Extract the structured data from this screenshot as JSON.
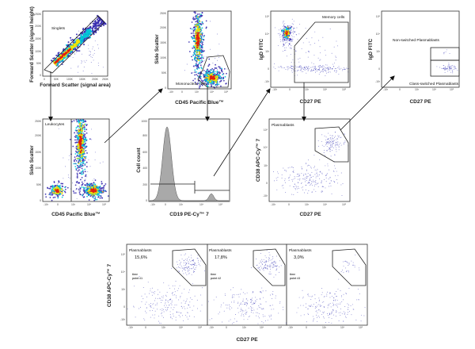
{
  "colors": {
    "density_low": "#3a2fb0",
    "density_mid": "#00c8d8",
    "density_high": "#f4e400",
    "density_peak": "#e02010",
    "histogram_fill": "#a9a9a9",
    "scatter_dot": "#4040b8"
  },
  "panels": {
    "singlets": {
      "x_label": "Forward Scatter (signal area)",
      "y_label": "Forward Scatter (signal height)",
      "gate_label": "Singlets",
      "x_ticks": [
        "0",
        "50K",
        "100K",
        "150K",
        "200K",
        "250K"
      ],
      "y_ticks": [
        "0",
        "50K",
        "100K",
        "150K",
        "200K",
        "250K"
      ]
    },
    "mononuclear": {
      "x_label": "CD45 Pacific Blue™",
      "y_label": "Side Scatter",
      "gate_label": "Mononuclear cells",
      "x_ticks": [
        "-10³",
        "0",
        "10³",
        "10⁴",
        "10⁵"
      ],
      "y_ticks": [
        "0",
        "50K",
        "100K",
        "150K",
        "200K",
        "250K"
      ]
    },
    "memory": {
      "x_label": "CD27 PE",
      "y_label": "IgD FITC",
      "gate_label": "Memory cells",
      "x_ticks": [
        "-10³",
        "0",
        "10³",
        "10⁴",
        "10⁵"
      ],
      "y_ticks": [
        "-10³",
        "0",
        "10³",
        "10⁴",
        "10⁵"
      ]
    },
    "switched": {
      "x_label": "CD27 PE",
      "y_label": "IgD FITC",
      "gate_label_top": "Non-switched Plasmablasts",
      "gate_label_bottom": "Class-switched Plasmablasts",
      "x_ticks": [
        "-10³",
        "0",
        "10³",
        "10⁴",
        "10⁵"
      ],
      "y_ticks": [
        "-10³",
        "0",
        "10³",
        "10⁴",
        "10⁵"
      ]
    },
    "leukocytes": {
      "x_label": "CD45 Pacific Blue™",
      "y_label": "Side Scatter",
      "gate_label": "Leukocytes",
      "x_ticks": [
        "-10³",
        "0",
        "10³",
        "10⁴",
        "10⁵"
      ],
      "y_ticks": [
        "0",
        "50K",
        "100K",
        "150K",
        "200K",
        "250K"
      ]
    },
    "cd19": {
      "x_label": "CD19 PE-Cy™ 7",
      "y_label": "Cell count",
      "x_ticks": [
        "-10³",
        "0",
        "10³",
        "10⁴",
        "10⁵"
      ],
      "y_ticks": [
        "0",
        "200",
        "400",
        "600",
        "800",
        "1000"
      ]
    },
    "plasmablasts": {
      "x_label": "CD27 PE",
      "y_label": "CD38 APC-Cy™ 7",
      "gate_label": "Plasmablasts",
      "x_ticks": [
        "-10³",
        "0",
        "10³",
        "10⁴",
        "10⁵"
      ],
      "y_ticks": [
        "-10³",
        "0",
        "10³",
        "10⁴",
        "10⁵"
      ]
    }
  },
  "timepoints": {
    "x_label": "CD27 PE",
    "y_label": "CD38 APC-Cy™ 7",
    "x_ticks": [
      "-10³",
      "0",
      "10³",
      "10⁴",
      "10⁵"
    ],
    "y_ticks": [
      "-10³",
      "0",
      "10³",
      "10⁴",
      "10⁵"
    ],
    "panels": [
      {
        "gate_label": "Plasmablasts",
        "percent": "15,6%",
        "tp_line1": "time",
        "tp_line2": "point #1"
      },
      {
        "gate_label": "Plasmablasts",
        "percent": "17,8%",
        "tp_line1": "time",
        "tp_line2": "point #2"
      },
      {
        "gate_label": "Plasmablasts",
        "percent": "3,0%",
        "tp_line1": "time",
        "tp_line2": "point #3"
      }
    ]
  }
}
